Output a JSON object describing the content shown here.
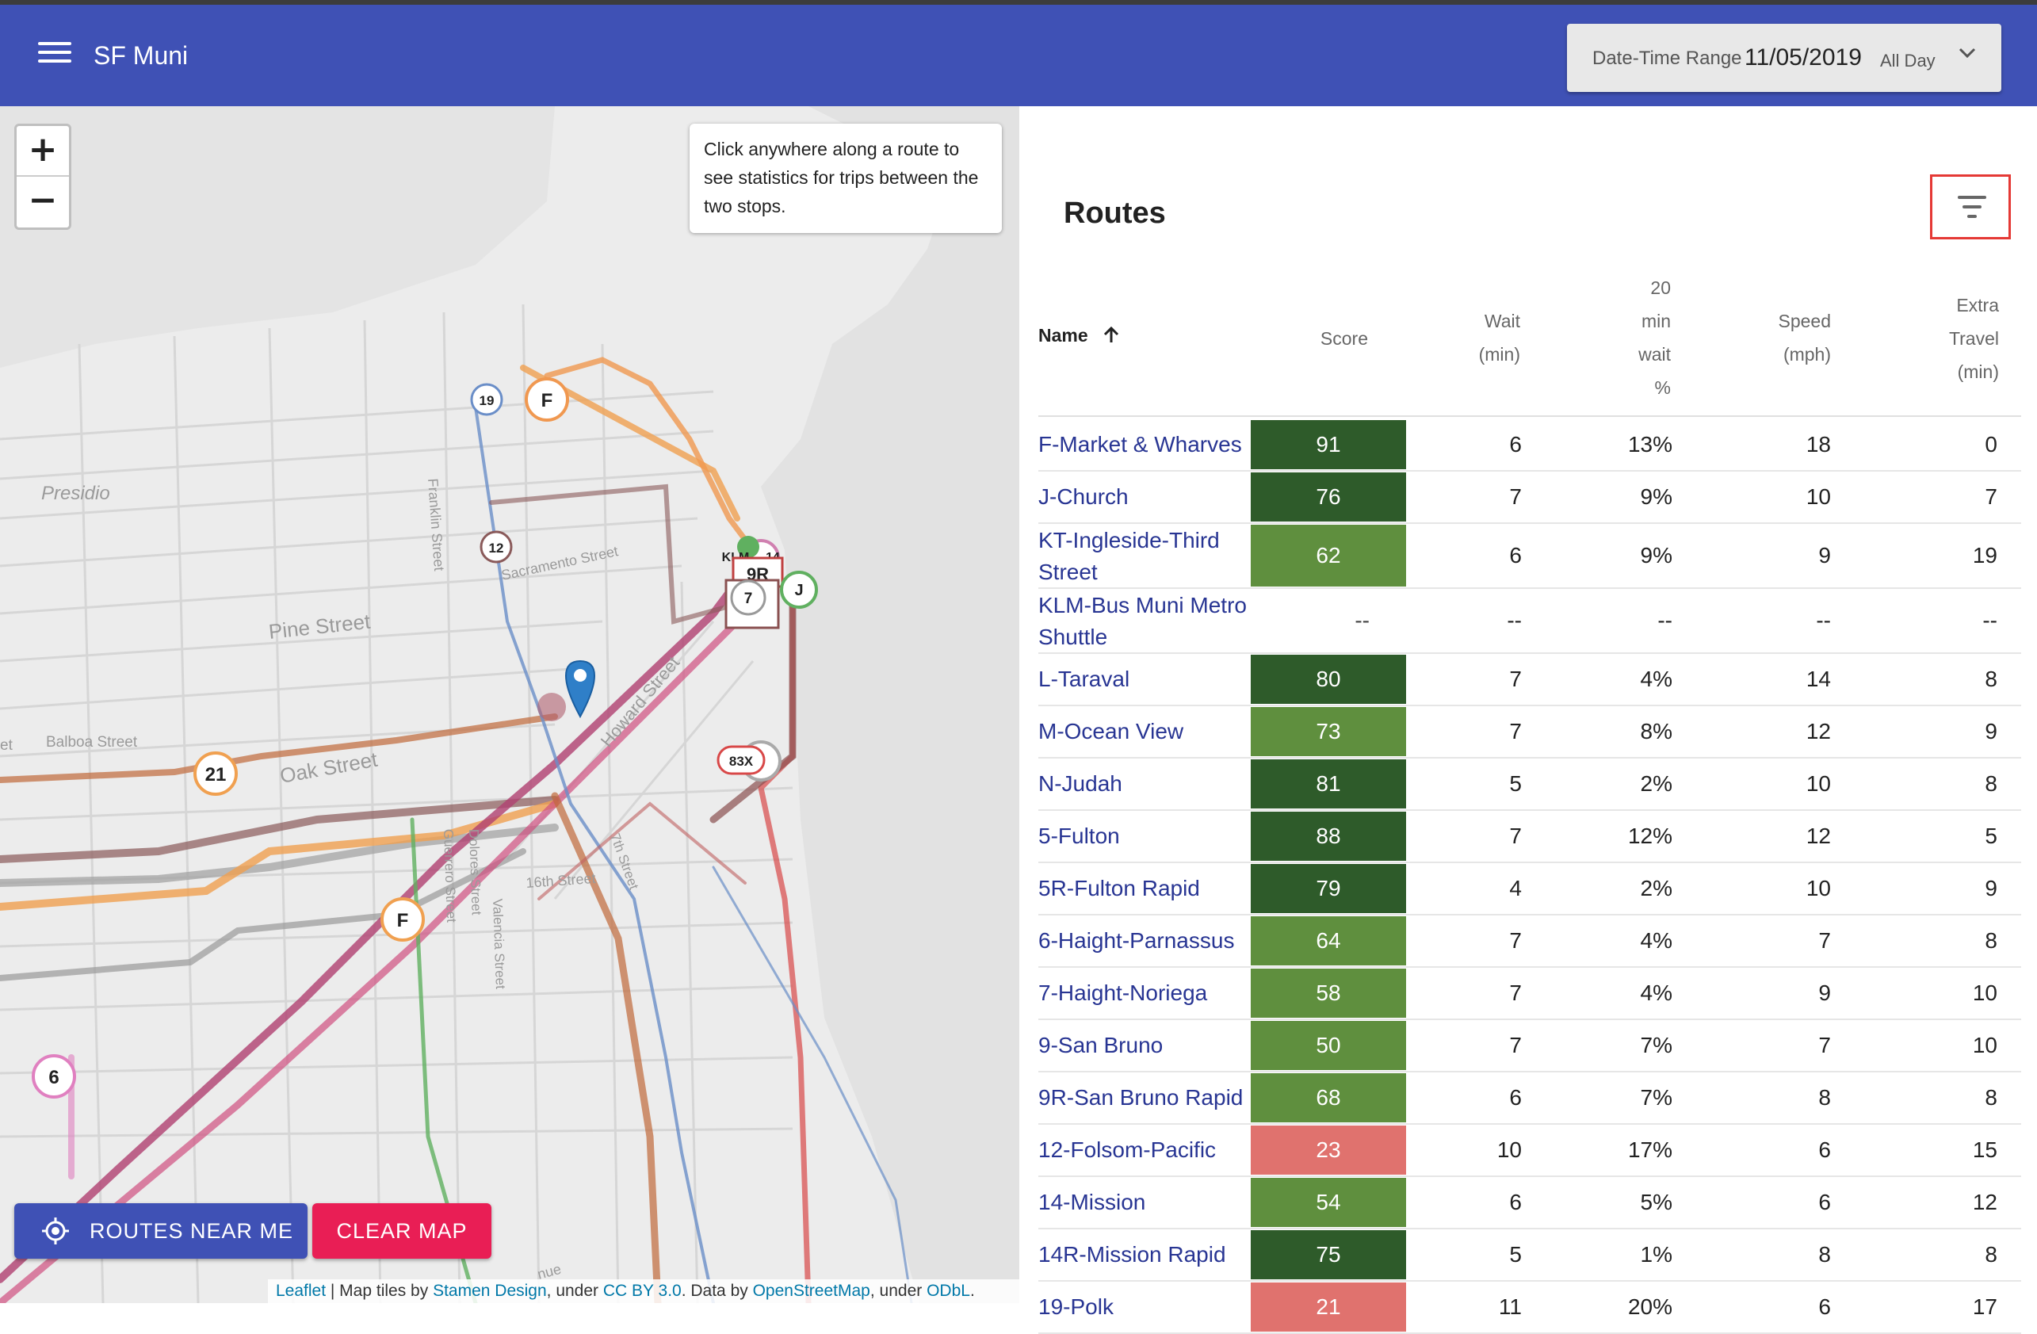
{
  "app": {
    "title": "SF Muni"
  },
  "date_range": {
    "label": "Date-Time Range",
    "date": "11/05/2019",
    "time": "All Day"
  },
  "map": {
    "zoom_in": "+",
    "zoom_out": "−",
    "hint": "Click anywhere along a route to see statistics for trips between the two stops.",
    "street_labels": [
      "Presidio",
      "Pine Street",
      "Balboa Street",
      "Oak Street",
      "Franklin Street",
      "Sacramento Street",
      "Howard Street",
      "16th Street",
      "Guerrero Street",
      "Valencia Street",
      "Dolores Street",
      "et",
      "7th Street",
      "nue"
    ],
    "route_badges": [
      "19",
      "F",
      "12",
      "KLM",
      "14",
      "9R",
      "7",
      "J",
      "21",
      "83X",
      "F",
      "6"
    ],
    "buttons": {
      "routes_near_me": "ROUTES NEAR ME",
      "clear_map": "CLEAR MAP"
    },
    "attribution": {
      "leaflet": "Leaflet",
      "sep1": " | Map tiles by ",
      "stamen": "Stamen Design",
      "sep2": ", under ",
      "cc": "CC BY 3.0",
      "sep3": ". Data by ",
      "osm": "OpenStreetMap",
      "sep4": ", under ",
      "odbl": "ODbL",
      "end": "."
    }
  },
  "routes": {
    "title": "Routes",
    "columns": {
      "name": "Name",
      "score": "Score",
      "wait": [
        "Wait",
        "(min)"
      ],
      "twenty": [
        "20",
        "min",
        "wait",
        "%"
      ],
      "speed": [
        "Speed",
        "(mph)"
      ],
      "extra": [
        "Extra",
        "Travel",
        "(min)"
      ]
    },
    "rows": [
      {
        "name": "F-Market & Wharves",
        "score": "91",
        "wait": "6",
        "pct": "13%",
        "speed": "18",
        "extra": "0",
        "color": "#2e5b2a"
      },
      {
        "name": "J-Church",
        "score": "76",
        "wait": "7",
        "pct": "9%",
        "speed": "10",
        "extra": "7",
        "color": "#2e5b2a"
      },
      {
        "name": "KT-Ingleside-Third Street",
        "score": "62",
        "wait": "6",
        "pct": "9%",
        "speed": "9",
        "extra": "19",
        "color": "#5f8f3e"
      },
      {
        "name": "KLM-Bus Muni Metro Shuttle",
        "score": "--",
        "wait": "--",
        "pct": "--",
        "speed": "--",
        "extra": "--",
        "color": ""
      },
      {
        "name": "L-Taraval",
        "score": "80",
        "wait": "7",
        "pct": "4%",
        "speed": "14",
        "extra": "8",
        "color": "#2e5b2a"
      },
      {
        "name": "M-Ocean View",
        "score": "73",
        "wait": "7",
        "pct": "8%",
        "speed": "12",
        "extra": "9",
        "color": "#5f8f3e"
      },
      {
        "name": "N-Judah",
        "score": "81",
        "wait": "5",
        "pct": "2%",
        "speed": "10",
        "extra": "8",
        "color": "#2e5b2a"
      },
      {
        "name": "5-Fulton",
        "score": "88",
        "wait": "7",
        "pct": "12%",
        "speed": "12",
        "extra": "5",
        "color": "#2e5b2a"
      },
      {
        "name": "5R-Fulton Rapid",
        "score": "79",
        "wait": "4",
        "pct": "2%",
        "speed": "10",
        "extra": "9",
        "color": "#2e5b2a"
      },
      {
        "name": "6-Haight-Parnassus",
        "score": "64",
        "wait": "7",
        "pct": "4%",
        "speed": "7",
        "extra": "8",
        "color": "#5f8f3e"
      },
      {
        "name": "7-Haight-Noriega",
        "score": "58",
        "wait": "7",
        "pct": "4%",
        "speed": "9",
        "extra": "10",
        "color": "#5f8f3e"
      },
      {
        "name": "9-San Bruno",
        "score": "50",
        "wait": "7",
        "pct": "7%",
        "speed": "7",
        "extra": "10",
        "color": "#5f8f3e"
      },
      {
        "name": "9R-San Bruno Rapid",
        "score": "68",
        "wait": "6",
        "pct": "7%",
        "speed": "8",
        "extra": "8",
        "color": "#5f8f3e"
      },
      {
        "name": "12-Folsom-Pacific",
        "score": "23",
        "wait": "10",
        "pct": "17%",
        "speed": "6",
        "extra": "15",
        "color": "#e0726e"
      },
      {
        "name": "14-Mission",
        "score": "54",
        "wait": "6",
        "pct": "5%",
        "speed": "6",
        "extra": "12",
        "color": "#5f8f3e"
      },
      {
        "name": "14R-Mission Rapid",
        "score": "75",
        "wait": "5",
        "pct": "1%",
        "speed": "8",
        "extra": "8",
        "color": "#2e5b2a"
      },
      {
        "name": "19-Polk",
        "score": "21",
        "wait": "11",
        "pct": "20%",
        "speed": "6",
        "extra": "17",
        "color": "#e0726e"
      }
    ]
  }
}
